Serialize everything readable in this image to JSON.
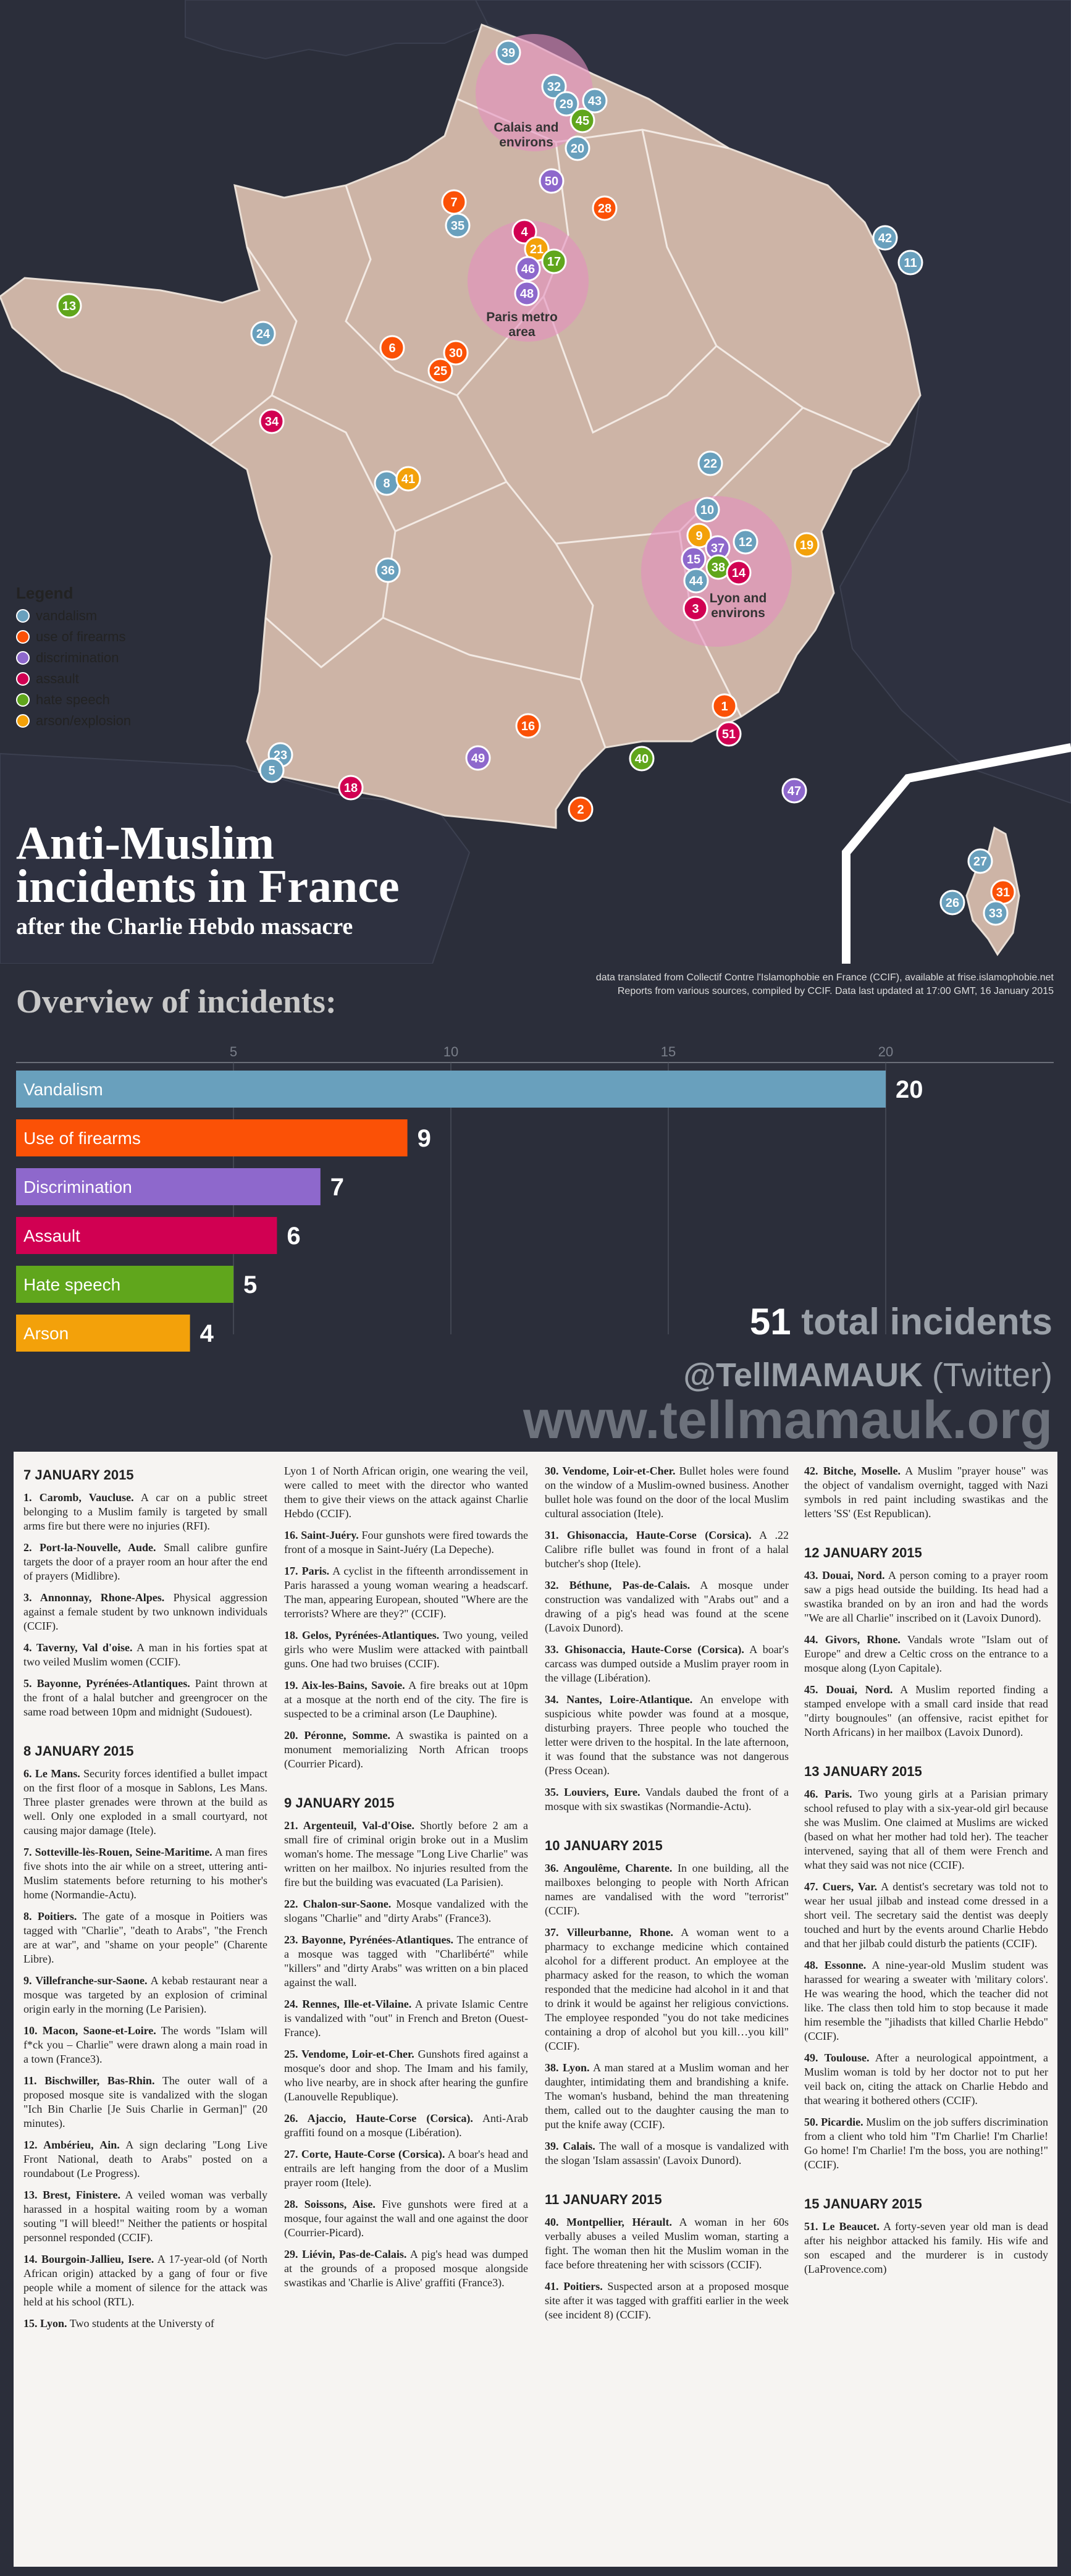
{
  "colors": {
    "vandalism": "#69a0bd",
    "firearms": "#fb5106",
    "discrimination": "#8e68cc",
    "assault": "#d10052",
    "hate_speech": "#60a61c",
    "arson": "#f3a10a",
    "land": "#cdb4a6",
    "background": "#2b2e3a",
    "zone": "#e58fc0"
  },
  "legend": {
    "title": "Legend",
    "items": [
      {
        "label": "vandalism",
        "color": "#69a0bd"
      },
      {
        "label": "use of firearms",
        "color": "#fb5106"
      },
      {
        "label": "discrimination",
        "color": "#8e68cc"
      },
      {
        "label": "assault",
        "color": "#d10052"
      },
      {
        "label": "hate speech",
        "color": "#60a61c"
      },
      {
        "label": "arson/explosion",
        "color": "#f3a10a"
      }
    ]
  },
  "zones": [
    {
      "label1": "Calais and",
      "label2": "environs"
    },
    {
      "label1": "Paris metro",
      "label2": "area"
    },
    {
      "label1": "Lyon and",
      "label2": "environs"
    }
  ],
  "markers": [
    {
      "id": "39",
      "type": "vandalism"
    },
    {
      "id": "32",
      "type": "vandalism"
    },
    {
      "id": "29",
      "type": "vandalism"
    },
    {
      "id": "43",
      "type": "vandalism"
    },
    {
      "id": "45",
      "type": "hate_speech"
    },
    {
      "id": "20",
      "type": "vandalism"
    },
    {
      "id": "50",
      "type": "discrimination"
    },
    {
      "id": "7",
      "type": "firearms"
    },
    {
      "id": "35",
      "type": "vandalism"
    },
    {
      "id": "28",
      "type": "firearms"
    },
    {
      "id": "4",
      "type": "assault"
    },
    {
      "id": "21",
      "type": "arson"
    },
    {
      "id": "17",
      "type": "hate_speech"
    },
    {
      "id": "46",
      "type": "discrimination"
    },
    {
      "id": "48",
      "type": "discrimination"
    },
    {
      "id": "42",
      "type": "vandalism"
    },
    {
      "id": "11",
      "type": "vandalism"
    },
    {
      "id": "13",
      "type": "hate_speech"
    },
    {
      "id": "24",
      "type": "vandalism"
    },
    {
      "id": "6",
      "type": "firearms"
    },
    {
      "id": "30",
      "type": "firearms"
    },
    {
      "id": "25",
      "type": "firearms"
    },
    {
      "id": "34",
      "type": "assault"
    },
    {
      "id": "22",
      "type": "vandalism"
    },
    {
      "id": "8",
      "type": "vandalism"
    },
    {
      "id": "41",
      "type": "arson"
    },
    {
      "id": "10",
      "type": "vandalism"
    },
    {
      "id": "9",
      "type": "arson"
    },
    {
      "id": "37",
      "type": "discrimination"
    },
    {
      "id": "12",
      "type": "vandalism"
    },
    {
      "id": "19",
      "type": "arson"
    },
    {
      "id": "15",
      "type": "discrimination"
    },
    {
      "id": "44",
      "type": "vandalism"
    },
    {
      "id": "38",
      "type": "hate_speech"
    },
    {
      "id": "14",
      "type": "assault"
    },
    {
      "id": "3",
      "type": "assault"
    },
    {
      "id": "36",
      "type": "vandalism"
    },
    {
      "id": "1",
      "type": "firearms"
    },
    {
      "id": "51",
      "type": "assault"
    },
    {
      "id": "16",
      "type": "firearms"
    },
    {
      "id": "23",
      "type": "vandalism"
    },
    {
      "id": "5",
      "type": "vandalism"
    },
    {
      "id": "49",
      "type": "discrimination"
    },
    {
      "id": "40",
      "type": "hate_speech"
    },
    {
      "id": "18",
      "type": "assault"
    },
    {
      "id": "2",
      "type": "firearms"
    },
    {
      "id": "47",
      "type": "discrimination"
    },
    {
      "id": "27",
      "type": "vandalism"
    },
    {
      "id": "26",
      "type": "vandalism"
    },
    {
      "id": "31",
      "type": "firearms"
    },
    {
      "id": "33",
      "type": "vandalism"
    }
  ],
  "title": {
    "line1": "Anti-Muslim",
    "line2": "incidents in France",
    "sub": "after the Charlie Hebdo massacre"
  },
  "source": {
    "line1": "data translated from Collectif Contre l'Islamophobie en France (CCIF), available at frise.islamophobie.net",
    "line2": "Reports from various sources, compiled by CCIF. Data last updated at 17:00 GMT, 16 January 2015"
  },
  "overview": {
    "title": "Overview of incidents:"
  },
  "chart_data": {
    "type": "bar",
    "orientation": "horizontal",
    "categories": [
      "Vandalism",
      "Use of firearms",
      "Discrimination",
      "Assault",
      "Hate speech",
      "Arson"
    ],
    "values": [
      20,
      9,
      7,
      6,
      5,
      4
    ],
    "colors": [
      "#69a0bd",
      "#fb5106",
      "#8e68cc",
      "#d10052",
      "#60a61c",
      "#f3a10a"
    ],
    "xticks": [
      "5",
      "10",
      "15",
      "20"
    ],
    "xlim": [
      0,
      23.5
    ],
    "grid": true,
    "legend": "none"
  },
  "totals": {
    "count": "51",
    "label": "total incidents"
  },
  "twitter": {
    "handle": "@TellMAMAUK",
    "suffix": "(Twitter)"
  },
  "website": "www.tellmamauk.org",
  "timeline": {
    "col1": {
      "sections": [
        {
          "date": "7 JANUARY 2015",
          "items": [
            {
              "head": "1. Caromb, Vaucluse.",
              "text": "A car on a public street belonging to a Muslim family is targeted by small arms fire but there were no injuries (RFI)."
            },
            {
              "head": "2. Port-la-Nouvelle, Aude.",
              "text": "Small calibre gunfire targets the door of a prayer room an hour after the end of prayers (Midlibre)."
            },
            {
              "head": "3. Annonnay, Rhone-Alpes.",
              "text": "Physical aggression against a female student by two unknown individuals (CCIF)."
            },
            {
              "head": "4. Taverny, Val d'oise.",
              "text": "A man in his forties spat at two veiled Muslim women (CCIF)."
            },
            {
              "head": "5. Bayonne, Pyrénées-Atlantiques.",
              "text": "Paint thrown at the front of a halal butcher and greengrocer on the same road between 10pm and midnight (Sudouest)."
            }
          ]
        },
        {
          "date": "8 JANUARY 2015",
          "items": [
            {
              "head": "6. Le Mans.",
              "text": "Security forces identified a bullet impact on the first floor of a mosque in Sablons, Les Mans. Three plaster grenades were thrown at the build as well. Only one exploded in a small courtyard, not causing major damage (Itele)."
            },
            {
              "head": "7. Sotteville-lès-Rouen, Seine-Maritime.",
              "text": "A man fires five shots into the air while on a street, uttering anti-Muslim statements before returning to his mother's home (Normandie-Actu)."
            },
            {
              "head": "8. Poitiers.",
              "text": "The gate of a mosque in Poitiers was tagged with \"Charlie\", \"death to Arabs\", \"the French are at war\", and \"shame on your people\" (Charente Libre)."
            },
            {
              "head": "9. Villefranche-sur-Saone.",
              "text": "A kebab restaurant near a mosque was targeted by an explosion of criminal origin early in the morning (Le Parisien)."
            },
            {
              "head": "10. Macon, Saone-et-Loire.",
              "text": "The words \"Islam will f*ck you – Charlie\" were drawn along a main road in a town (France3)."
            },
            {
              "head": "11. Bischwiller, Bas-Rhin.",
              "text": "The outer wall of a proposed mosque site is vandalized with the slogan \"Ich Bin Charlie [Je Suis Charlie in German]\" (20 minutes)."
            },
            {
              "head": "12. Ambérieu, Ain.",
              "text": "A sign declaring \"Long Live Front National, death to Arabs\" posted on a roundabout (Le Progress)."
            },
            {
              "head": "13. Brest, Finistere.",
              "text": "A veiled woman was verbally harassed in a hospital waiting room by a woman souting \"I will bleed!\" Neither the patients or hospital personnel responded (CCIF)."
            },
            {
              "head": "14. Bourgoin-Jallieu, Isere.",
              "text": "A 17-year-old (of North African origin) attacked by a gang of four or five people while a moment of silence for the attack was held at his school (RTL)."
            },
            {
              "head": "15. Lyon.",
              "text": "Two students at the Universty of"
            }
          ]
        }
      ]
    },
    "col2": {
      "lead": "Lyon 1 of North African origin, one wearing the veil, were called to meet with the director who wanted them to give their views on the attack against Charlie Hebdo (CCIF).",
      "sections": [
        {
          "date": "",
          "items": [
            {
              "head": "16. Saint-Juéry.",
              "text": "Four gunshots were fired towards the front of a mosque in Saint-Juéry (La Depeche)."
            },
            {
              "head": "17. Paris.",
              "text": "A cyclist in the fifteenth arrondissement in Paris harassed a young woman wearing a headscarf. The man, appearing European, shouted \"Where are the terrorists? Where are they?\" (CCIF)."
            },
            {
              "head": "18. Gelos, Pyrénées-Atlantiques.",
              "text": "Two young, veiled girls who were Muslim were attacked with paintball guns. One had two bruises (CCIF)."
            },
            {
              "head": "19. Aix-les-Bains, Savoie.",
              "text": "A fire breaks out at 10pm at a mosque at the north end of the city. The fire is suspected to be a criminal arson (Le Dauphine)."
            },
            {
              "head": "20. Péronne, Somme.",
              "text": "A swastika is painted on a monument memorializing North African troops (Courrier Picard)."
            }
          ]
        },
        {
          "date": "9 JANUARY 2015",
          "items": [
            {
              "head": "21. Argenteuil, Val-d'Oise.",
              "text": "Shortly before 2 am a small fire of criminal origin broke out in a Muslim woman's home. The message \"Long Live Charlie\" was written on her mailbox. No injuries resulted from the fire but the building was evacuated (La Parisien)."
            },
            {
              "head": "22. Chalon-sur-Saone.",
              "text": "Mosque vandalized with the slogans \"Charlie\" and \"dirty Arabs\" (France3)."
            },
            {
              "head": "23. Bayonne, Pyrénées-Atlantiques.",
              "text": "The entrance of a mosque was tagged with \"Charlibérté\" while \"killers\" and \"dirty Arabs\" was written on a bin placed against the wall."
            },
            {
              "head": "24. Rennes, Ille-et-Vilaine.",
              "text": "A private Islamic Centre is vandalized with \"out\" in French and Breton (Ouest-France)."
            },
            {
              "head": "25. Vendome, Loir-et-Cher.",
              "text": "Gunshots fired against a mosque's door and shop. The Imam and his family, who live nearby, are in shock after hearing the gunfire (Lanouvelle Republique)."
            },
            {
              "head": "26. Ajaccio, Haute-Corse (Corsica).",
              "text": "Anti-Arab graffiti found on a mosque (Libération)."
            },
            {
              "head": "27. Corte, Haute-Corse (Corsica).",
              "text": "A boar's head and entrails are left hanging from the door of a Muslim prayer room (Itele)."
            },
            {
              "head": "28. Soissons, Aise.",
              "text": "Five gunshots were fired at a mosque, four against the wall and one against the door (Courrier-Picard)."
            },
            {
              "head": "29. Liévin, Pas-de-Calais.",
              "text": "A pig's head was dumped at the grounds of a proposed mosque alongside swastikas and 'Charlie is Alive' graffiti (France3)."
            }
          ]
        }
      ]
    },
    "col3": {
      "sections": [
        {
          "date": "",
          "items": [
            {
              "head": "30. Vendome, Loir-et-Cher.",
              "text": "Bullet holes were found on the window of a Muslim-owned business. Another bullet hole was found on the door of the local Muslim cultural association (Itele)."
            },
            {
              "head": "31. Ghisonaccia, Haute-Corse (Corsica).",
              "text": "A .22 Calibre rifle bullet was found in front of a halal butcher's shop (Itele)."
            },
            {
              "head": "32. Béthune, Pas-de-Calais.",
              "text": "A mosque under construction was vandalized with \"Arabs out\" and a drawing of a pig's head was found at the scene (Lavoix Dunord)."
            },
            {
              "head": "33. Ghisonaccia, Haute-Corse (Corsica).",
              "text": "A boar's carcass was dumped outside a Muslim prayer room in the village (Libération)."
            },
            {
              "head": "34. Nantes, Loire-Atlantique.",
              "text": "An envelope with suspicious white powder was found at a mosque, disturbing prayers. Three people who touched the letter were driven to the hospital. In the late afternoon, it was found that the substance was not dangerous (Press Ocean)."
            },
            {
              "head": "35. Louviers, Eure.",
              "text": "Vandals daubed the front of a mosque with six swastikas (Normandie-Actu)."
            }
          ]
        },
        {
          "date": "10 JANUARY 2015",
          "items": [
            {
              "head": "36. Angoulême, Charente.",
              "text": "In one building, all the mailboxes belonging to people with North African names are vandalised with the word \"terrorist\" (CCIF)."
            },
            {
              "head": "37. Villeurbanne, Rhone.",
              "text": "A woman went to a pharmacy to exchange medicine which contained alcohol for a different product. An employee at the pharmacy asked for the reason, to which the woman responded that the medicine had alcohol in it and that to drink it would be against her religious convictions. The employee responded \"you do not take medicines containing a drop of alcohol but you kill…you kill\" (CCIF)."
            },
            {
              "head": "38. Lyon.",
              "text": "A man stared at a Muslim woman and her daughter, intimidating them and brandishing a knife. The woman's husband, behind the man threatening them, called out to the daughter causing the man to put the knife away (CCIF)."
            },
            {
              "head": "39. Calais.",
              "text": "The wall of a mosque is vandalized with the slogan 'Islam assassin' (Lavoix Dunord)."
            }
          ]
        },
        {
          "date": "11 JANUARY 2015",
          "items": [
            {
              "head": "40. Montpellier, Hérault.",
              "text": "A woman in her 60s verbally abuses a veiled Muslim woman, starting a fight. The woman then hit the Muslim woman in the face before threatening her with scissors (CCIF)."
            },
            {
              "head": "41. Poitiers.",
              "text": "Suspected arson at a proposed mosque site after it was tagged with graffiti earlier in the week (see incident 8) (CCIF)."
            }
          ]
        }
      ]
    },
    "col4": {
      "sections": [
        {
          "date": "",
          "items": [
            {
              "head": "42. Bitche, Moselle.",
              "text": "A Muslim \"prayer house\" was the object of vandalism overnight, tagged with Nazi symbols in red paint including swastikas and the letters 'SS' (Est Republican)."
            }
          ]
        },
        {
          "date": "12 JANUARY 2015",
          "items": [
            {
              "head": "43. Douai, Nord.",
              "text": "A person coming to a prayer room saw a pigs head outside the building. Its head had a swastika branded on by an iron and had the words \"We are all Charlie\" inscribed on it (Lavoix Dunord)."
            },
            {
              "head": "44. Givors, Rhone.",
              "text": "Vandals wrote \"Islam out of Europe\" and drew a Celtic cross on the entrance to a mosque along (Lyon Capitale)."
            },
            {
              "head": "45. Douai, Nord.",
              "text": "A Muslim reported finding a stamped envelope with a small card inside that read \"dirty bougnoules\" (an offensive, racist epithet for North Africans) in her mailbox (Lavoix Dunord)."
            }
          ]
        },
        {
          "date": "13 JANUARY 2015",
          "items": [
            {
              "head": "46. Paris.",
              "text": "Two young girls at a Parisian primary school refused to play with a six-year-old girl because she was Muslim. One claimed at Muslims are wicked (based on what her mother had told her). The teacher intervened, saying that all of them were French and what they said was not nice (CCIF)."
            },
            {
              "head": "47. Cuers, Var.",
              "text": "A dentist's secretary was told not to wear her usual jilbab and instead come dressed in a short veil. The secretary said the dentist was deeply touched and hurt by the events around Charlie Hebdo and that her jilbab could disturb the patients (CCIF)."
            },
            {
              "head": "48. Essonne.",
              "text": "A nine-year-old Muslim student was harassed for wearing a sweater with 'military colors'. He was wearing the hood, which the teacher did not like. The class then told him to stop because it made him resemble the \"jihadists that killed Charlie Hebdo\" (CCIF)."
            },
            {
              "head": "49. Toulouse.",
              "text": "After a neurological appointment, a Muslim woman is told by her doctor not to put her veil back on, citing the attack on Charlie Hebdo and that wearing it bothered others (CCIF)."
            },
            {
              "head": "50. Picardie.",
              "text": "Muslim on the job suffers discrimination from a client who told him \"I'm Charlie! I'm Charlie! Go home! I'm Charlie! I'm the boss, you are nothing!\" (CCIF)."
            }
          ]
        },
        {
          "date": "15 JANUARY 2015",
          "items": [
            {
              "head": "51. Le Beaucet.",
              "text": "A forty-seven year old man is dead after his neighbor attacked his family. His wife and son escaped and the murderer is in custody (LaProvence.com)"
            }
          ]
        }
      ]
    }
  }
}
